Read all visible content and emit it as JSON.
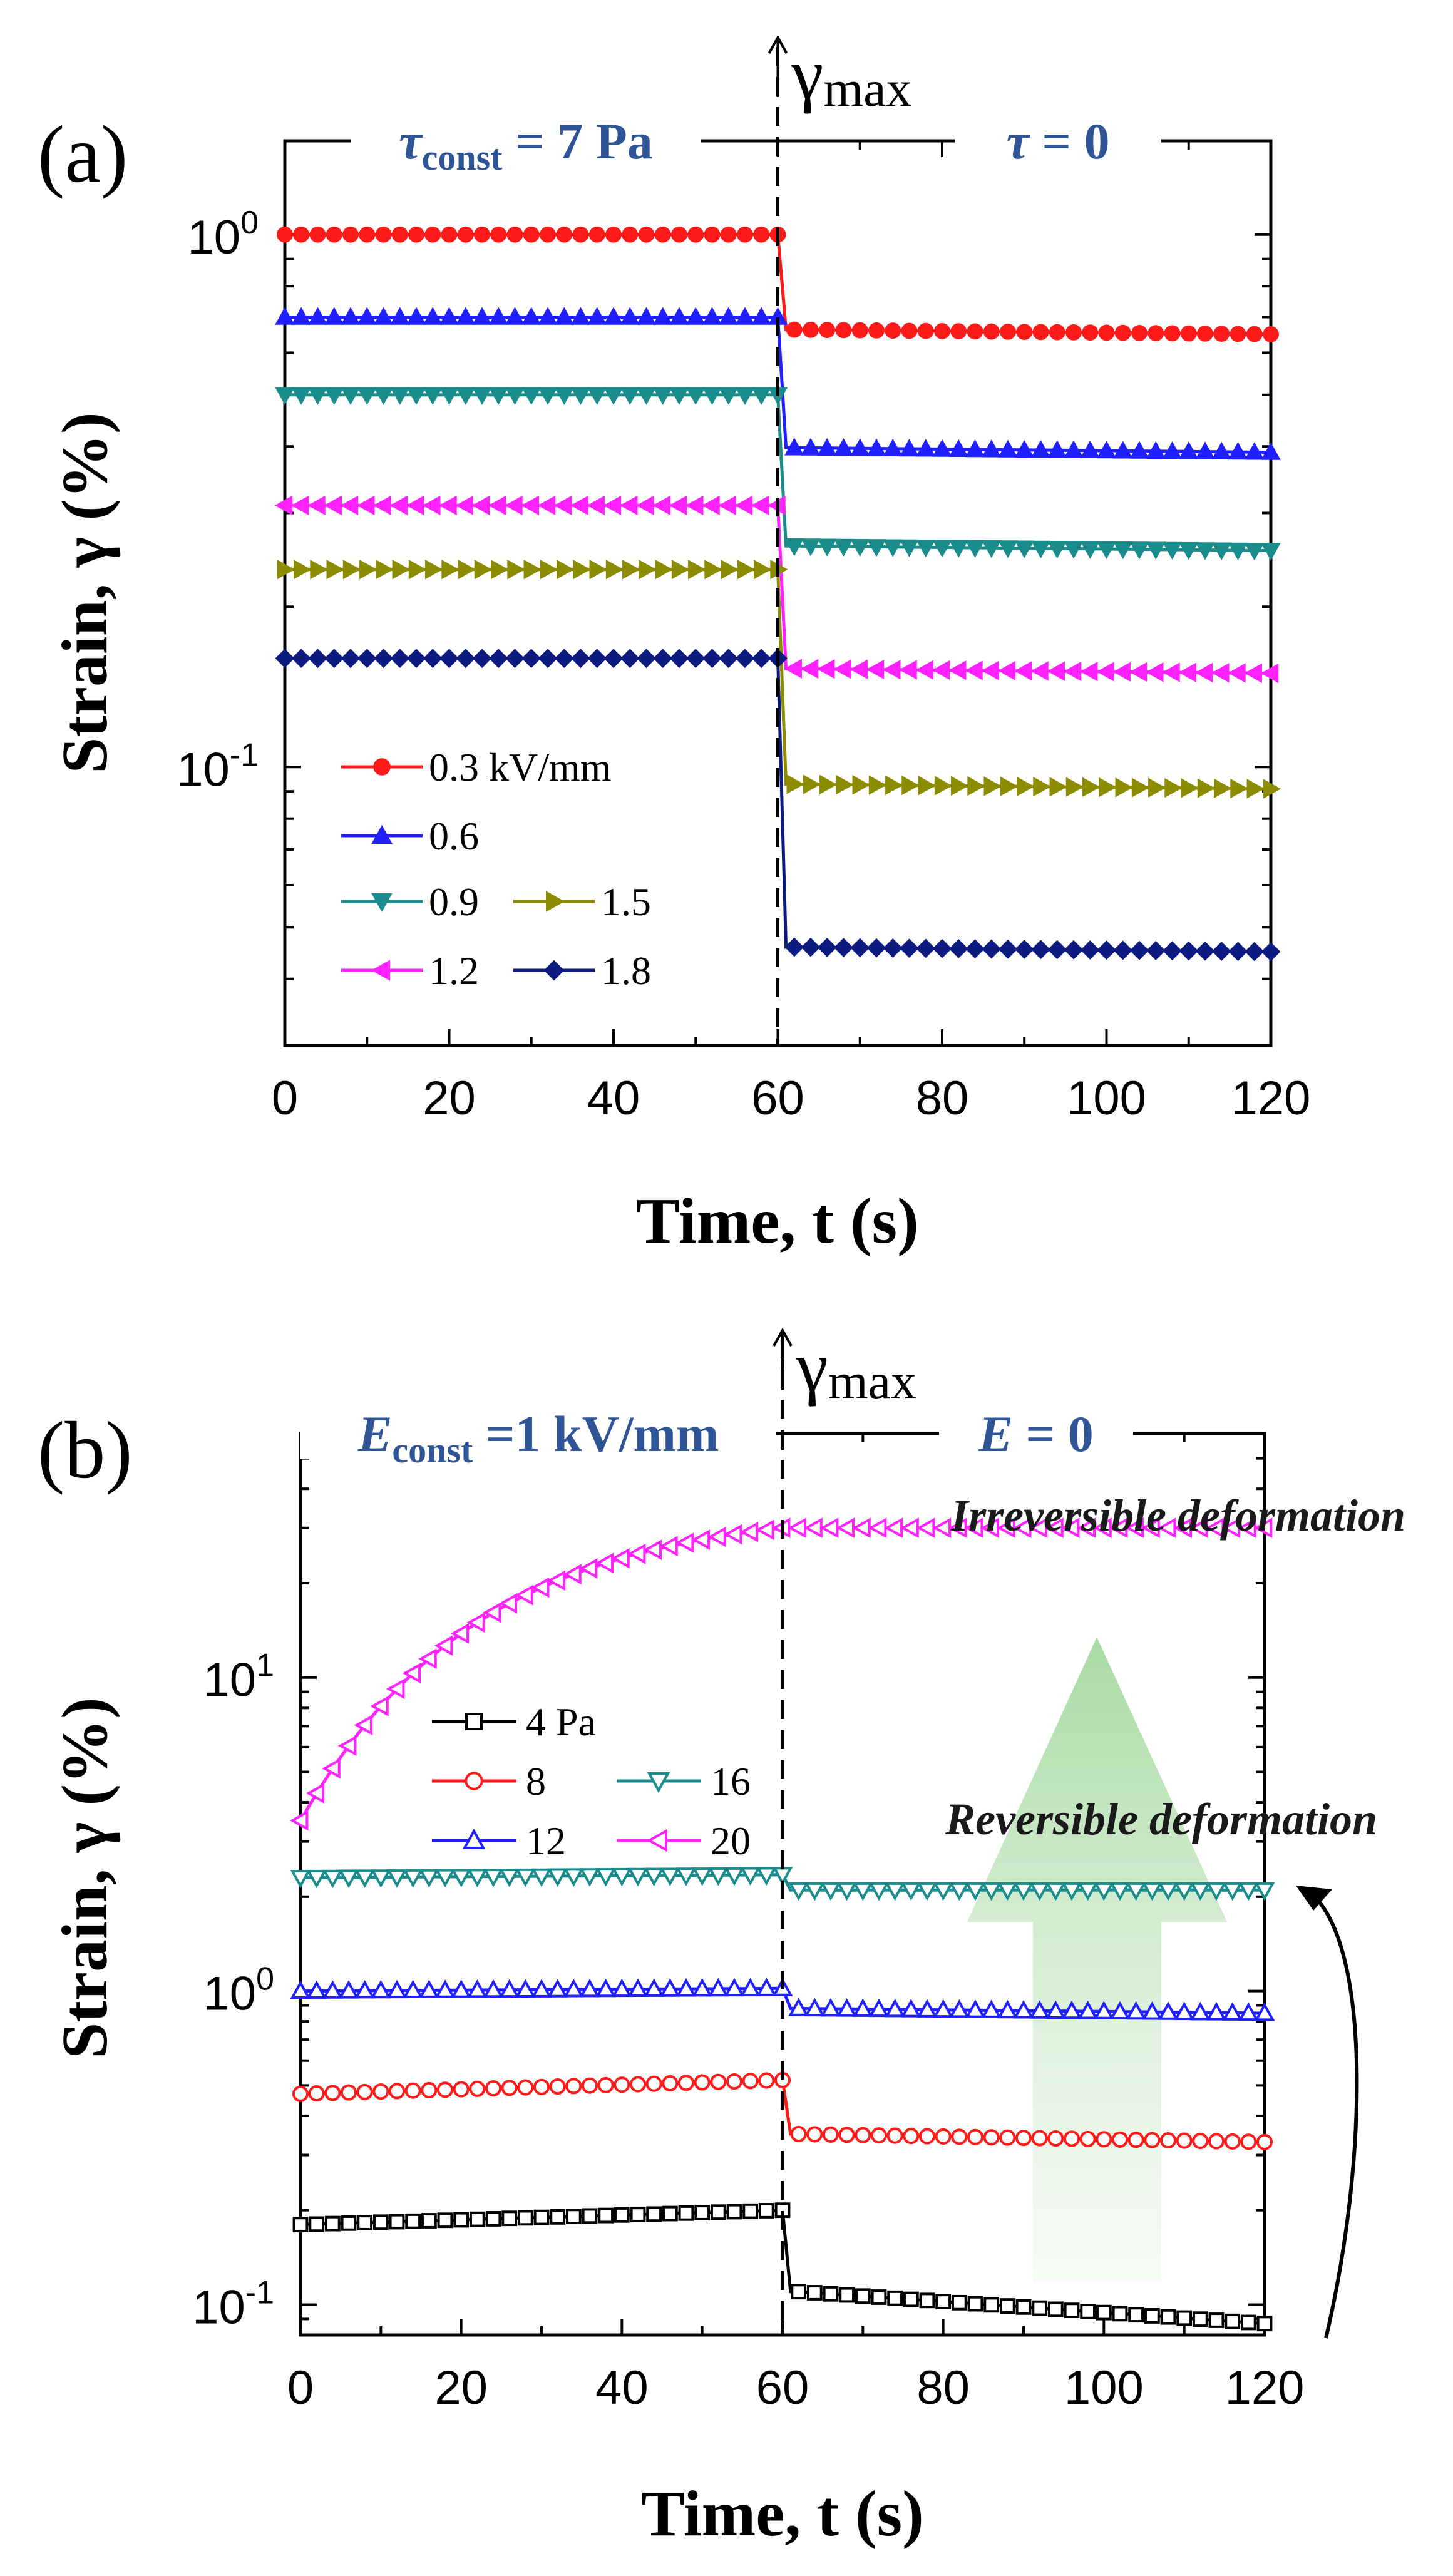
{
  "chart_data": [
    {
      "panel_label": "(a)",
      "type": "line",
      "xlabel": "Time, t (s)",
      "ylabel": "Strain, γ (%)",
      "xlim": [
        0,
        120
      ],
      "ylim": [
        0.03,
        1.5
      ],
      "yscale": "log",
      "x_ticks": [
        "0",
        "20",
        "40",
        "60",
        "80",
        "100",
        "120"
      ],
      "y_tick_labels": [
        {
          "base": "10",
          "exp": "-1",
          "value": 0.1
        },
        {
          "base": "10",
          "exp": "0",
          "value": 1
        }
      ],
      "divider_x": 60,
      "divider_label": {
        "symbol": "γ",
        "sub": "max"
      },
      "region_left": {
        "sym": "τ",
        "sub": "const",
        "rest": "= 7 Pa"
      },
      "region_right": {
        "sym": "τ",
        "sub": "",
        "rest": "= 0"
      },
      "legend_placement": "bottom-left",
      "series": [
        {
          "name": "0.3 kV/mm",
          "color": "#ff1a1a",
          "marker": "circle-filled",
          "before": 1.0,
          "after": 0.65
        },
        {
          "name": "0.6",
          "color": "#1f1fff",
          "marker": "triangle-up-filled",
          "before": 0.7,
          "after": 0.39
        },
        {
          "name": "0.9",
          "color": "#1a8c8c",
          "marker": "triangle-down-filled",
          "before": 0.5,
          "after": 0.255
        },
        {
          "name": "1.2",
          "color": "#ff22ff",
          "marker": "triangle-left-filled",
          "before": 0.31,
          "after": 0.15
        },
        {
          "name": "1.5",
          "color": "#8c8c00",
          "marker": "triangle-right-filled",
          "before": 0.235,
          "after": 0.091
        },
        {
          "name": "1.8",
          "color": "#0d1a80",
          "marker": "diamond-filled",
          "before": 0.16,
          "after": 0.045
        }
      ]
    },
    {
      "panel_label": "(b)",
      "type": "line",
      "xlabel": "Time, t (s)",
      "ylabel": "Strain, γ (%)",
      "xlim": [
        0,
        120
      ],
      "ylim": [
        0.08,
        60
      ],
      "yscale": "log",
      "x_ticks": [
        "0",
        "20",
        "40",
        "60",
        "80",
        "100",
        "120"
      ],
      "y_tick_labels": [
        {
          "base": "10",
          "exp": "-1",
          "value": 0.1
        },
        {
          "base": "10",
          "exp": "0",
          "value": 1
        },
        {
          "base": "10",
          "exp": "1",
          "value": 10
        }
      ],
      "divider_x": 60,
      "divider_label": {
        "symbol": "γ",
        "sub": "max"
      },
      "region_left": {
        "sym": "E",
        "sub": "const",
        "rest": "=1 kV/mm"
      },
      "region_right": {
        "sym": "E",
        "sub": "",
        "rest": "= 0"
      },
      "legend_placement": "middle-left",
      "annotations": [
        "Irreversible deformation",
        "Reversible deformation"
      ],
      "series": [
        {
          "name": "4 Pa",
          "color": "#000000",
          "marker": "square-open",
          "before_start": 0.18,
          "before_end": 0.2,
          "after_start": 0.11,
          "after_end": 0.087
        },
        {
          "name": "8",
          "color": "#ff1a1a",
          "marker": "circle-open",
          "before_start": 0.47,
          "before_end": 0.52,
          "after_start": 0.35,
          "after_end": 0.33
        },
        {
          "name": "12",
          "color": "#1f1fff",
          "marker": "triangle-up-open",
          "before_start": 1.0,
          "before_end": 1.02,
          "after_start": 0.88,
          "after_end": 0.85
        },
        {
          "name": "16",
          "color": "#1a8c8c",
          "marker": "triangle-down-open",
          "before_start": 2.3,
          "before_end": 2.35,
          "after_start": 2.1,
          "after_end": 2.1
        },
        {
          "name": "20",
          "color": "#ff22ff",
          "marker": "triangle-left-open",
          "before_start": 3.5,
          "before_end": 30,
          "after_start": 30,
          "after_end": 30
        }
      ]
    }
  ]
}
